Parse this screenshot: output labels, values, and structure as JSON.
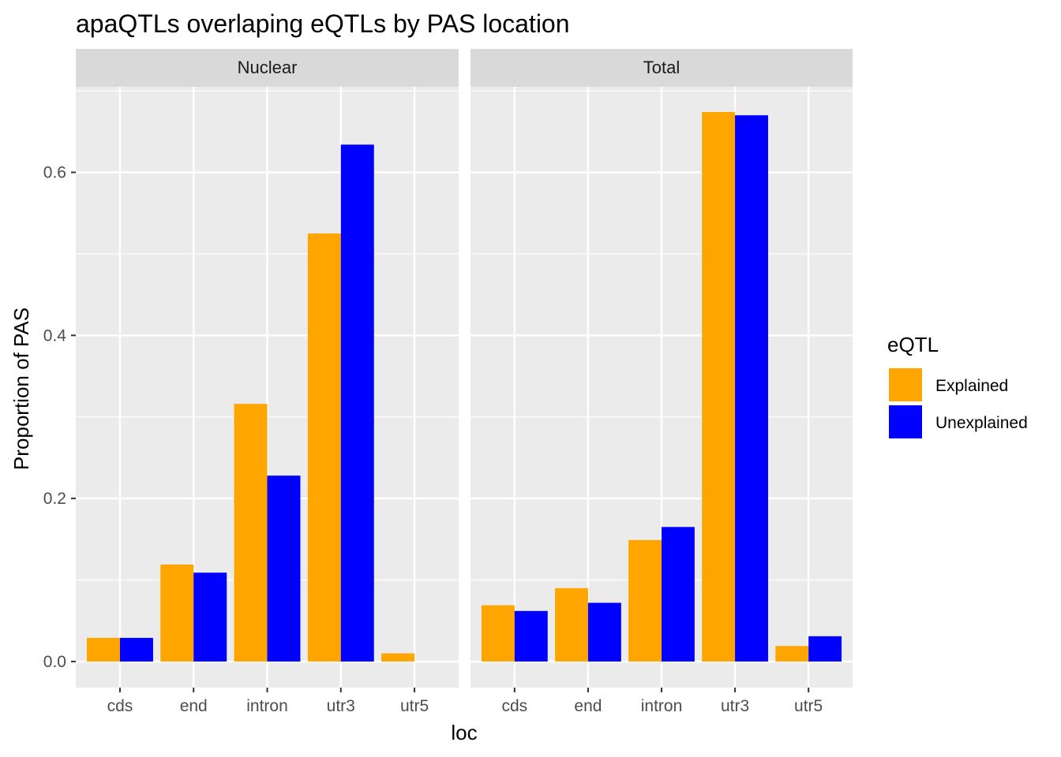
{
  "chart_data": {
    "type": "bar",
    "title": "apaQTLs overlaping eQTLs by PAS location",
    "xlabel": "loc",
    "ylabel": "Proportion of PAS",
    "ylim": [
      -0.032,
      0.705
    ],
    "yticks": [
      0.0,
      0.2,
      0.4,
      0.6
    ],
    "ytick_labels": [
      "0.0",
      "0.2",
      "0.4",
      "0.6"
    ],
    "grid": true,
    "categories": [
      "cds",
      "end",
      "intron",
      "utr3",
      "utr5"
    ],
    "facets": [
      {
        "label": "Nuclear",
        "series": [
          {
            "name": "Explained",
            "values": [
              0.029,
              0.119,
              0.316,
              0.525,
              0.01
            ]
          },
          {
            "name": "Unexplained",
            "values": [
              0.029,
              0.109,
              0.228,
              0.634,
              0.0
            ]
          }
        ]
      },
      {
        "label": "Total",
        "series": [
          {
            "name": "Explained",
            "values": [
              0.069,
              0.09,
              0.149,
              0.674,
              0.019
            ]
          },
          {
            "name": "Unexplained",
            "values": [
              0.062,
              0.072,
              0.165,
              0.67,
              0.031
            ]
          }
        ]
      }
    ],
    "legend": {
      "title": "eQTL",
      "placement": "right",
      "entries": [
        {
          "name": "Explained",
          "color": "#FFA500"
        },
        {
          "name": "Unexplained",
          "color": "#0000FF"
        }
      ]
    },
    "colors": {
      "Explained": "#FFA500",
      "Unexplained": "#0000FF",
      "panel_background": "#EBEBEB",
      "strip_background": "#D9D9D9",
      "grid": "#FFFFFF"
    }
  }
}
